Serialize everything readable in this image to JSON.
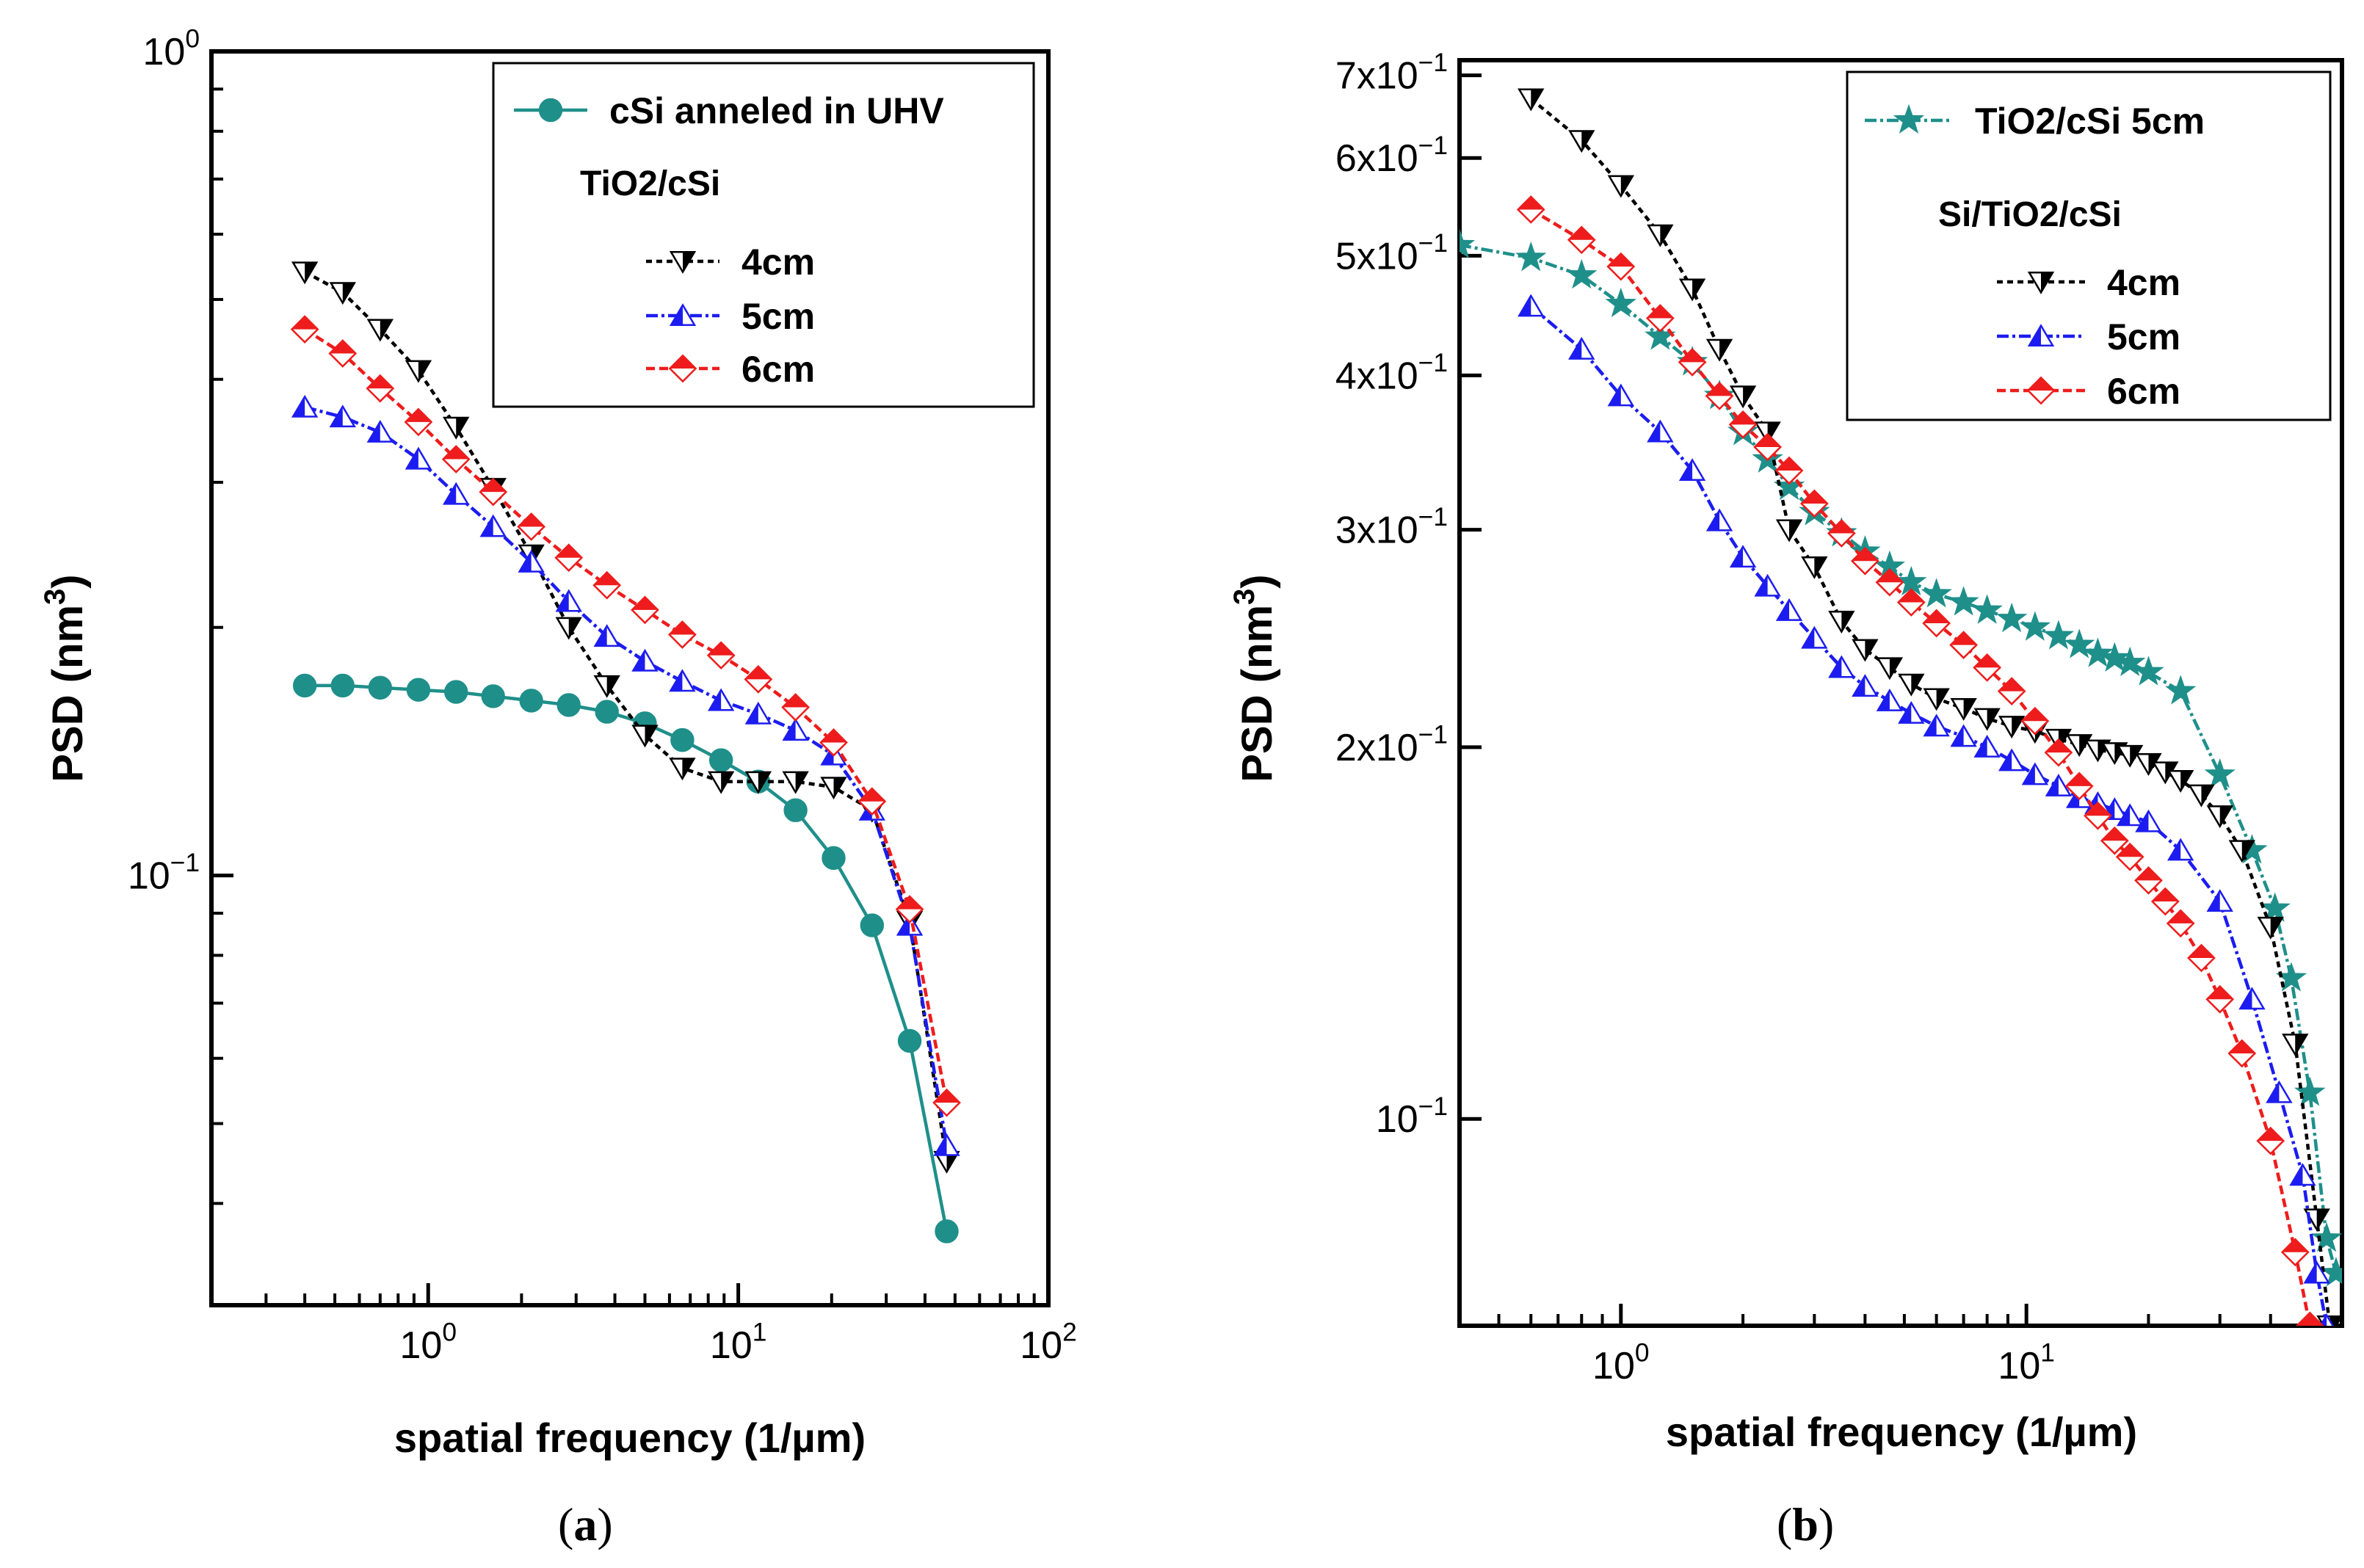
{
  "figure": {
    "captions": [
      {
        "open": "(",
        "letter": "a",
        "close": ")"
      },
      {
        "open": "(",
        "letter": "b",
        "close": ")"
      }
    ]
  },
  "chart_data": [
    {
      "type": "line",
      "panel": "a",
      "xlabel": "spatial  frequency (1/µm)",
      "ylabel": "PSD (nm",
      "ylabel_sup": "3",
      "ylabel_close": ")",
      "x_scale": "log",
      "y_scale": "log",
      "xlim": [
        0.2,
        100
      ],
      "ylim": [
        0.0301,
        1.0
      ],
      "x_ticks": [
        {
          "value": 1,
          "base": "10",
          "exp": "0"
        },
        {
          "value": 10,
          "base": "10",
          "exp": "1"
        },
        {
          "value": 100,
          "base": "10",
          "exp": "2"
        }
      ],
      "y_ticks": [
        {
          "value": 1,
          "base": "10",
          "exp": "0"
        },
        {
          "value": 0.1,
          "base": "10",
          "exp": "−1"
        }
      ],
      "legend": {
        "position": "top-right",
        "group_title": "TiO2/cSi"
      },
      "series": [
        {
          "name": "cSi anneled in UHV",
          "in_group": false,
          "color": "#1f8f8a",
          "marker": "circle",
          "dash": "solid",
          "x": [
            0.4,
            0.53,
            0.7,
            0.93,
            1.23,
            1.62,
            2.15,
            2.84,
            3.77,
            5.0,
            6.6,
            8.8,
            11.6,
            15.3,
            20.3,
            27.0,
            35.7,
            47.0
          ],
          "y": [
            0.17,
            0.17,
            0.169,
            0.168,
            0.167,
            0.165,
            0.163,
            0.161,
            0.158,
            0.153,
            0.146,
            0.138,
            0.13,
            0.12,
            0.105,
            0.087,
            0.063,
            0.037
          ]
        },
        {
          "name": "4cm",
          "in_group": true,
          "color": "#000000",
          "marker": "triangle-down",
          "dash": "8,6",
          "x": [
            0.4,
            0.53,
            0.7,
            0.93,
            1.23,
            1.62,
            2.15,
            2.84,
            3.77,
            5.0,
            6.6,
            8.8,
            11.6,
            15.3,
            20.3,
            27.0,
            35.7,
            47.0
          ],
          "y": [
            0.54,
            0.51,
            0.46,
            0.41,
            0.35,
            0.295,
            0.245,
            0.2,
            0.17,
            0.148,
            0.135,
            0.13,
            0.13,
            0.13,
            0.128,
            0.12,
            0.088,
            0.045
          ]
        },
        {
          "name": "5cm",
          "in_group": true,
          "color": "#1c1cf0",
          "marker": "triangle-up",
          "dash": "16,5,4,5",
          "x": [
            0.4,
            0.53,
            0.7,
            0.93,
            1.23,
            1.62,
            2.15,
            2.84,
            3.77,
            5.0,
            6.6,
            8.8,
            11.6,
            15.3,
            20.3,
            27.0,
            35.7,
            47.0
          ],
          "y": [
            0.37,
            0.36,
            0.345,
            0.32,
            0.29,
            0.265,
            0.24,
            0.215,
            0.195,
            0.182,
            0.172,
            0.163,
            0.157,
            0.15,
            0.14,
            0.12,
            0.087,
            0.047
          ]
        },
        {
          "name": "6cm",
          "in_group": true,
          "color": "#ee1c1c",
          "marker": "diamond",
          "dash": "12,6",
          "x": [
            0.4,
            0.53,
            0.7,
            0.93,
            1.23,
            1.62,
            2.15,
            2.84,
            3.77,
            5.0,
            6.6,
            8.8,
            11.6,
            15.3,
            20.3,
            27.0,
            35.7,
            47.0
          ],
          "y": [
            0.46,
            0.43,
            0.39,
            0.355,
            0.32,
            0.292,
            0.265,
            0.243,
            0.225,
            0.21,
            0.196,
            0.185,
            0.173,
            0.16,
            0.145,
            0.123,
            0.091,
            0.053
          ]
        }
      ]
    },
    {
      "type": "line",
      "panel": "b",
      "xlabel": "spatial frequency (1/µm)",
      "ylabel": "PSD (nm",
      "ylabel_sup": "3",
      "ylabel_close": ")",
      "x_scale": "log",
      "y_scale": "log",
      "xlim": [
        0.4,
        60
      ],
      "ylim": [
        0.068,
        0.72
      ],
      "x_ticks": [
        {
          "value": 1,
          "base": "10",
          "exp": "0"
        },
        {
          "value": 10,
          "base": "10",
          "exp": "1"
        }
      ],
      "y_ticks": [
        {
          "value": 0.7,
          "base": "7x10",
          "exp": "−1"
        },
        {
          "value": 0.6,
          "base": "6x10",
          "exp": "−1"
        },
        {
          "value": 0.5,
          "base": "5x10",
          "exp": "−1"
        },
        {
          "value": 0.4,
          "base": "4x10",
          "exp": "−1"
        },
        {
          "value": 0.3,
          "base": "3x10",
          "exp": "−1"
        },
        {
          "value": 0.2,
          "base": "2x10",
          "exp": "−1"
        },
        {
          "value": 0.1,
          "base": "10",
          "exp": "−1"
        }
      ],
      "legend": {
        "position": "top-right",
        "group_title": "Si/TiO2/cSi"
      },
      "series": [
        {
          "name": "TiO2/cSi 5cm",
          "in_group": false,
          "color": "#1f8f8a",
          "marker": "star",
          "dash": "16,5,4,5",
          "x": [
            0.4,
            0.6,
            0.8,
            1.0,
            1.25,
            1.5,
            1.75,
            2.0,
            2.3,
            2.6,
            3.0,
            3.5,
            4.0,
            4.6,
            5.2,
            6.0,
            7.0,
            8.0,
            9.2,
            10.5,
            12.0,
            13.5,
            15.0,
            16.5,
            18.0,
            20.0,
            24.0,
            30.0,
            36.0,
            41.0,
            45.0,
            50.0,
            55.0,
            58.0
          ],
          "y": [
            0.51,
            0.498,
            0.482,
            0.457,
            0.43,
            0.41,
            0.385,
            0.36,
            0.342,
            0.325,
            0.31,
            0.298,
            0.288,
            0.28,
            0.272,
            0.266,
            0.262,
            0.258,
            0.254,
            0.25,
            0.246,
            0.242,
            0.238,
            0.236,
            0.234,
            0.23,
            0.222,
            0.19,
            0.165,
            0.148,
            0.13,
            0.105,
            0.08,
            0.075
          ]
        },
        {
          "name": "4cm",
          "in_group": true,
          "color": "#000000",
          "marker": "triangle-down",
          "dash": "8,6",
          "x": [
            0.6,
            0.8,
            1.0,
            1.25,
            1.5,
            1.75,
            2.0,
            2.3,
            2.6,
            3.0,
            3.5,
            4.0,
            4.6,
            5.2,
            6.0,
            7.0,
            8.0,
            9.2,
            10.5,
            12.0,
            13.5,
            15.0,
            16.5,
            18.0,
            20.0,
            22.0,
            24.0,
            27.0,
            30.0,
            34.0,
            40.0,
            46.0,
            52.0,
            56.0
          ],
          "y": [
            0.67,
            0.62,
            0.57,
            0.52,
            0.47,
            0.42,
            0.385,
            0.36,
            0.3,
            0.28,
            0.253,
            0.24,
            0.232,
            0.225,
            0.219,
            0.215,
            0.211,
            0.208,
            0.206,
            0.203,
            0.201,
            0.199,
            0.198,
            0.197,
            0.194,
            0.191,
            0.188,
            0.183,
            0.176,
            0.165,
            0.143,
            0.115,
            0.083,
            0.068
          ]
        },
        {
          "name": "5cm",
          "in_group": true,
          "color": "#1c1cf0",
          "marker": "triangle-up",
          "dash": "16,5,4,5",
          "x": [
            0.6,
            0.8,
            1.0,
            1.25,
            1.5,
            1.75,
            2.0,
            2.3,
            2.6,
            3.0,
            3.5,
            4.0,
            4.6,
            5.2,
            6.0,
            7.0,
            8.0,
            9.2,
            10.5,
            12.0,
            13.5,
            15.0,
            16.5,
            18.0,
            20.0,
            24.0,
            30.0,
            36.0,
            42.0,
            48.0,
            52.0,
            55.0
          ],
          "y": [
            0.455,
            0.42,
            0.385,
            0.36,
            0.335,
            0.305,
            0.285,
            0.27,
            0.258,
            0.245,
            0.232,
            0.224,
            0.218,
            0.213,
            0.208,
            0.204,
            0.2,
            0.195,
            0.19,
            0.186,
            0.182,
            0.18,
            0.178,
            0.176,
            0.174,
            0.165,
            0.15,
            0.125,
            0.105,
            0.09,
            0.075,
            0.068
          ]
        },
        {
          "name": "6cm",
          "in_group": true,
          "color": "#ee1c1c",
          "marker": "diamond",
          "dash": "12,6",
          "x": [
            0.6,
            0.8,
            1.0,
            1.25,
            1.5,
            1.75,
            2.0,
            2.3,
            2.6,
            3.0,
            3.5,
            4.0,
            4.6,
            5.2,
            6.0,
            7.0,
            8.0,
            9.2,
            10.5,
            12.0,
            13.5,
            15.0,
            16.5,
            18.0,
            20.0,
            22.0,
            24.0,
            27.0,
            30.0,
            34.0,
            40.0,
            46.0,
            50.0
          ],
          "y": [
            0.545,
            0.515,
            0.49,
            0.445,
            0.41,
            0.385,
            0.365,
            0.35,
            0.335,
            0.315,
            0.298,
            0.283,
            0.272,
            0.262,
            0.252,
            0.242,
            0.232,
            0.222,
            0.21,
            0.198,
            0.186,
            0.176,
            0.168,
            0.163,
            0.156,
            0.15,
            0.144,
            0.135,
            0.125,
            0.113,
            0.096,
            0.078,
            0.068
          ]
        }
      ]
    }
  ]
}
